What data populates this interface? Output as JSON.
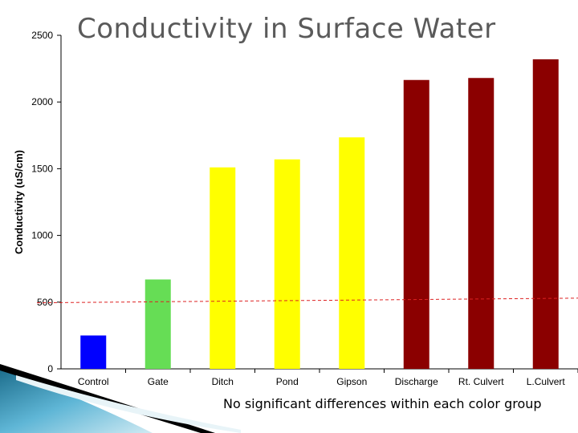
{
  "page": {
    "title": "Conductivity in Surface Water",
    "footnote": "No significant differences within each color group"
  },
  "chart_data": {
    "type": "bar",
    "title": "Conductivity in Surface Water",
    "xlabel": "",
    "ylabel": "Conductivity (uS/cm)",
    "ylim": [
      0,
      2500
    ],
    "yticks": [
      0,
      500,
      1000,
      1500,
      2000,
      2500
    ],
    "categories": [
      "Control",
      "Gate",
      "Ditch",
      "Pond",
      "Gipson",
      "Discharge",
      "Rt. Culvert",
      "L.Culvert"
    ],
    "values": [
      250,
      670,
      1510,
      1570,
      1735,
      2165,
      2180,
      2320
    ],
    "colors": [
      "#0000ff",
      "#66dd55",
      "#ffff00",
      "#ffff00",
      "#ffff00",
      "#8b0000",
      "#8b0000",
      "#8b0000"
    ],
    "reference_line": {
      "y_start": 495,
      "y_end": 530,
      "color": "#dd2222",
      "style": "dashed"
    },
    "grid": false,
    "legend": "none"
  }
}
